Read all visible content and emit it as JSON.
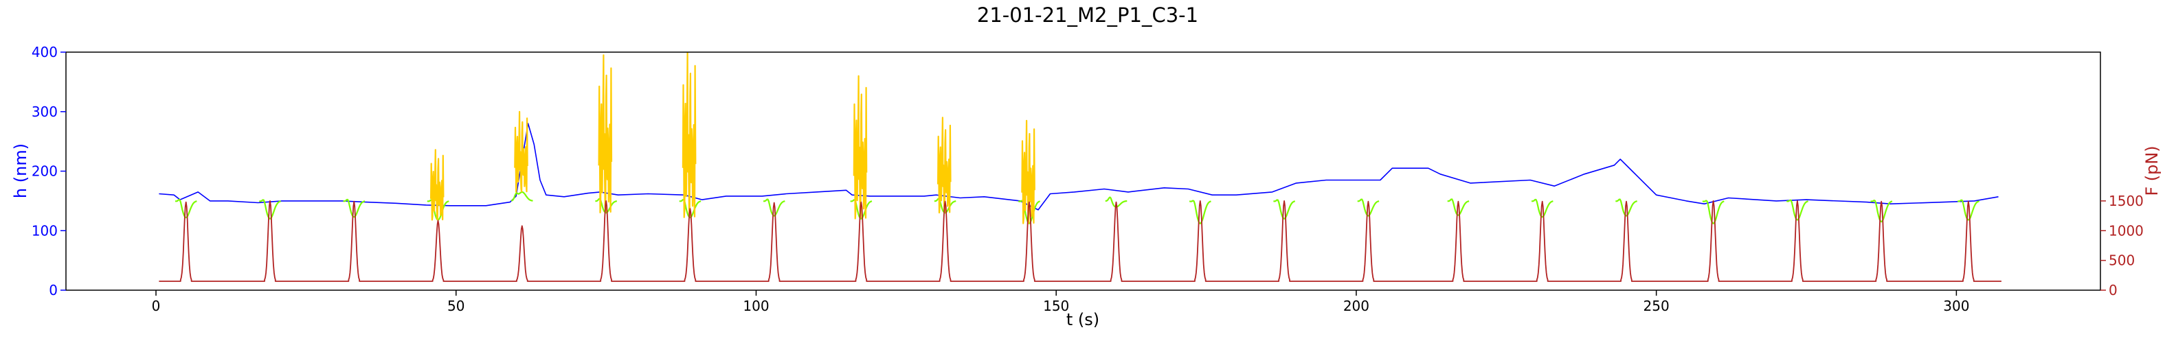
{
  "chart_data": {
    "type": "line",
    "title": "21-01-21_M2_P1_C3-1",
    "xlabel": "t (s)",
    "ylabel_left": "h (nm)",
    "ylabel_right": "F (pN)",
    "xlim": [
      -15,
      324
    ],
    "ylim_left": [
      0,
      400
    ],
    "ylim_right": [
      0,
      4000
    ],
    "xticks": [
      0,
      50,
      100,
      150,
      200,
      250,
      300
    ],
    "yticks_left": [
      0,
      100,
      200,
      300,
      400
    ],
    "yticks_right": [
      0,
      500,
      1000,
      1500
    ],
    "grid": false,
    "colors": {
      "h_segment": "#0000ff",
      "h_compression": "#7cfc00",
      "h_anomaly": "#ffcc00",
      "force": "#b22222",
      "left_axis": "#0000ff",
      "right_axis": "#b22222"
    },
    "compression_events": [
      {
        "t": 5,
        "h": 122,
        "peak_force": 1480
      },
      {
        "t": 19,
        "h": 120,
        "peak_force": 1500
      },
      {
        "t": 33,
        "h": 123,
        "peak_force": 1490
      },
      {
        "t": 47,
        "h": 118,
        "peak_force": 1170,
        "anomalous": true,
        "spike_h": 236
      },
      {
        "t": 61,
        "h": 165,
        "peak_force": 1080,
        "anomalous": true,
        "spike_h": 300
      },
      {
        "t": 75,
        "h": 130,
        "peak_force": 1500,
        "anomalous": true,
        "spike_h": 395
      },
      {
        "t": 89,
        "h": 122,
        "peak_force": 1370,
        "anomalous": true,
        "spike_h": 400
      },
      {
        "t": 103,
        "h": 125,
        "peak_force": 1470
      },
      {
        "t": 117.5,
        "h": 120,
        "peak_force": 1480,
        "anomalous": true,
        "spike_h": 360
      },
      {
        "t": 131.5,
        "h": 130,
        "peak_force": 1490,
        "anomalous": true,
        "spike_h": 290
      },
      {
        "t": 145.5,
        "h": 112,
        "peak_force": 1480,
        "anomalous": true,
        "spike_h": 285
      },
      {
        "t": 160,
        "h": 140,
        "peak_force": 1480
      },
      {
        "t": 174,
        "h": 112,
        "peak_force": 1500
      },
      {
        "t": 188,
        "h": 120,
        "peak_force": 1500
      },
      {
        "t": 202,
        "h": 125,
        "peak_force": 1490
      },
      {
        "t": 217,
        "h": 126,
        "peak_force": 1490
      },
      {
        "t": 231,
        "h": 123,
        "peak_force": 1490
      },
      {
        "t": 245,
        "h": 125,
        "peak_force": 1490
      },
      {
        "t": 259.5,
        "h": 112,
        "peak_force": 1500
      },
      {
        "t": 273.5,
        "h": 118,
        "peak_force": 1500
      },
      {
        "t": 287.5,
        "h": 115,
        "peak_force": 1490
      },
      {
        "t": 302,
        "h": 118,
        "peak_force": 1490
      }
    ],
    "baseline_h": [
      [
        0.5,
        162
      ],
      [
        3,
        160
      ],
      [
        4,
        152
      ],
      [
        7,
        165
      ],
      [
        9,
        150
      ],
      [
        12,
        150
      ],
      [
        17,
        147
      ],
      [
        21,
        150
      ],
      [
        25,
        150
      ],
      [
        31,
        150
      ],
      [
        35,
        148
      ],
      [
        40,
        146
      ],
      [
        45,
        143
      ],
      [
        49,
        142
      ],
      [
        55,
        142
      ],
      [
        59,
        148
      ],
      [
        60,
        158
      ],
      [
        62,
        280
      ],
      [
        63,
        245
      ],
      [
        64,
        185
      ],
      [
        65,
        160
      ],
      [
        68,
        157
      ],
      [
        72,
        163
      ],
      [
        74,
        165
      ],
      [
        77,
        160
      ],
      [
        82,
        162
      ],
      [
        88,
        160
      ],
      [
        91,
        152
      ],
      [
        95,
        158
      ],
      [
        101,
        158
      ],
      [
        105,
        162
      ],
      [
        110,
        165
      ],
      [
        115,
        168
      ],
      [
        116,
        160
      ],
      [
        119,
        158
      ],
      [
        123,
        158
      ],
      [
        128,
        158
      ],
      [
        130,
        160
      ],
      [
        134,
        155
      ],
      [
        138,
        157
      ],
      [
        144,
        150
      ],
      [
        147,
        135
      ],
      [
        149,
        162
      ],
      [
        153,
        165
      ],
      [
        158,
        170
      ],
      [
        162,
        165
      ],
      [
        168,
        172
      ],
      [
        172,
        170
      ],
      [
        176,
        160
      ],
      [
        180,
        160
      ],
      [
        186,
        165
      ],
      [
        190,
        180
      ],
      [
        195,
        185
      ],
      [
        200,
        185
      ],
      [
        204,
        185
      ],
      [
        206,
        205
      ],
      [
        212,
        205
      ],
      [
        214,
        195
      ],
      [
        219,
        180
      ],
      [
        229,
        185
      ],
      [
        233,
        175
      ],
      [
        238,
        195
      ],
      [
        243,
        210
      ],
      [
        244,
        220
      ],
      [
        246,
        200
      ],
      [
        250,
        160
      ],
      [
        255,
        150
      ],
      [
        258,
        145
      ],
      [
        262,
        155
      ],
      [
        270,
        150
      ],
      [
        275,
        152
      ],
      [
        285,
        148
      ],
      [
        289,
        145
      ],
      [
        298,
        148
      ],
      [
        303,
        150
      ],
      [
        307,
        157
      ]
    ],
    "force_baseline": 150
  }
}
